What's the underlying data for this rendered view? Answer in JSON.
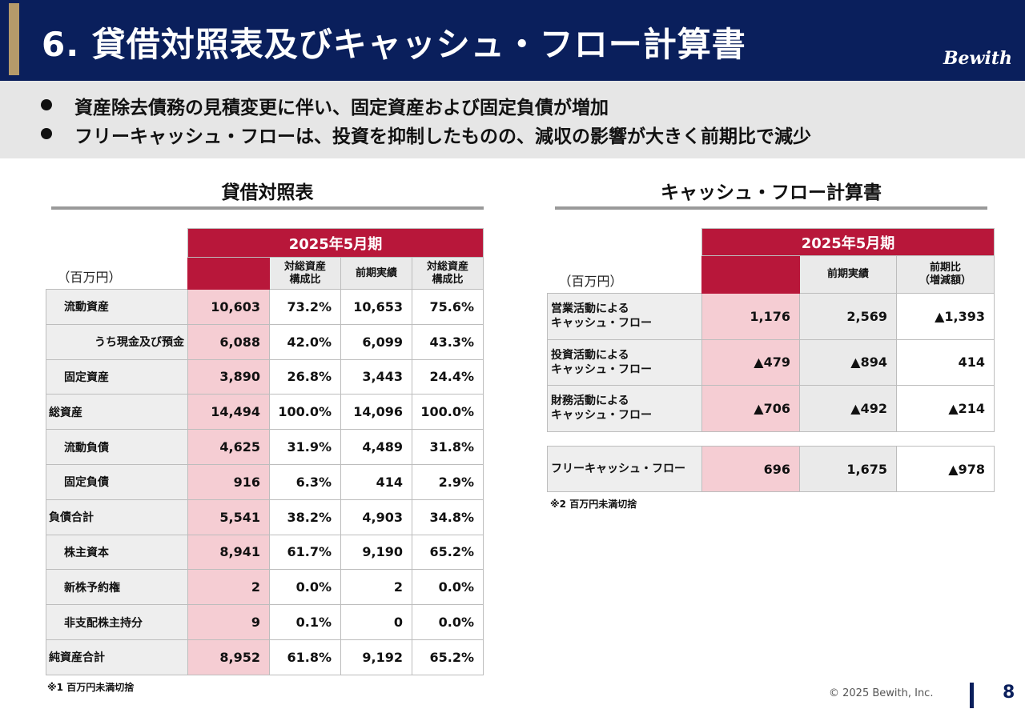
{
  "header": {
    "title": "6. 貸借対照表及びキャッシュ・フロー計算書",
    "logo": "Bewith"
  },
  "bullets": [
    "資産除去債務の見積変更に伴い、固定資産および固定負債が増加",
    "フリーキャッシュ・フローは、投資を抑制したものの、減収の影響が大きく前期比で減少"
  ],
  "balance_sheet": {
    "title": "貸借対照表",
    "unit": "（百万円）",
    "period": "2025年5月期",
    "columns": [
      "対総資産\n構成比",
      "前期実績",
      "対総資産\n構成比"
    ],
    "rows": [
      {
        "label": "流動資産",
        "level": 1,
        "values": [
          "10,603",
          "73.2%",
          "10,653",
          "75.6%"
        ]
      },
      {
        "label": "うち現金及び預金",
        "level": 2,
        "values": [
          "6,088",
          "42.0%",
          "6,099",
          "43.3%"
        ]
      },
      {
        "label": "固定資産",
        "level": 1,
        "values": [
          "3,890",
          "26.8%",
          "3,443",
          "24.4%"
        ]
      },
      {
        "label": "総資産",
        "level": 0,
        "values": [
          "14,494",
          "100.0%",
          "14,096",
          "100.0%"
        ]
      },
      {
        "label": "流動負債",
        "level": 1,
        "values": [
          "4,625",
          "31.9%",
          "4,489",
          "31.8%"
        ]
      },
      {
        "label": "固定負債",
        "level": 1,
        "values": [
          "916",
          "6.3%",
          "414",
          "2.9%"
        ]
      },
      {
        "label": "負債合計",
        "level": 0,
        "values": [
          "5,541",
          "38.2%",
          "4,903",
          "34.8%"
        ]
      },
      {
        "label": "株主資本",
        "level": 1,
        "values": [
          "8,941",
          "61.7%",
          "9,190",
          "65.2%"
        ]
      },
      {
        "label": "新株予約権",
        "level": 1,
        "values": [
          "2",
          "0.0%",
          "2",
          "0.0%"
        ]
      },
      {
        "label": "非支配株主持分",
        "level": 1,
        "values": [
          "9",
          "0.1%",
          "0",
          "0.0%"
        ]
      },
      {
        "label": "純資産合計",
        "level": 0,
        "values": [
          "8,952",
          "61.8%",
          "9,192",
          "65.2%"
        ]
      }
    ],
    "note": "※1 百万円未満切捨"
  },
  "cash_flow": {
    "title": "キャッシュ・フロー計算書",
    "unit": "（百万円）",
    "period": "2025年5月期",
    "columns": [
      "前期実績",
      "前期比\n（増減額）"
    ],
    "rows": [
      {
        "label_line1": "営業活動による",
        "label_line2": "キャッシュ・フロー",
        "values": [
          "1,176",
          "2,569",
          "▲1,393"
        ]
      },
      {
        "label_line1": "投資活動による",
        "label_line2": "キャッシュ・フロー",
        "values": [
          "▲479",
          "▲894",
          "414"
        ]
      },
      {
        "label_line1": "財務活動による",
        "label_line2": "キャッシュ・フロー",
        "values": [
          "▲706",
          "▲492",
          "▲214"
        ]
      }
    ],
    "fcf": {
      "label": "フリーキャッシュ・フロー",
      "values": [
        "696",
        "1,675",
        "▲978"
      ]
    },
    "note": "※2 百万円未満切捨"
  },
  "footer": {
    "copyright": "© 2025 Bewith, Inc.",
    "page": "8"
  },
  "colors": {
    "navy": "#0a1f5c",
    "gold": "#b59a6a",
    "crimson": "#b8173a",
    "pink": "#f5cdd3"
  }
}
